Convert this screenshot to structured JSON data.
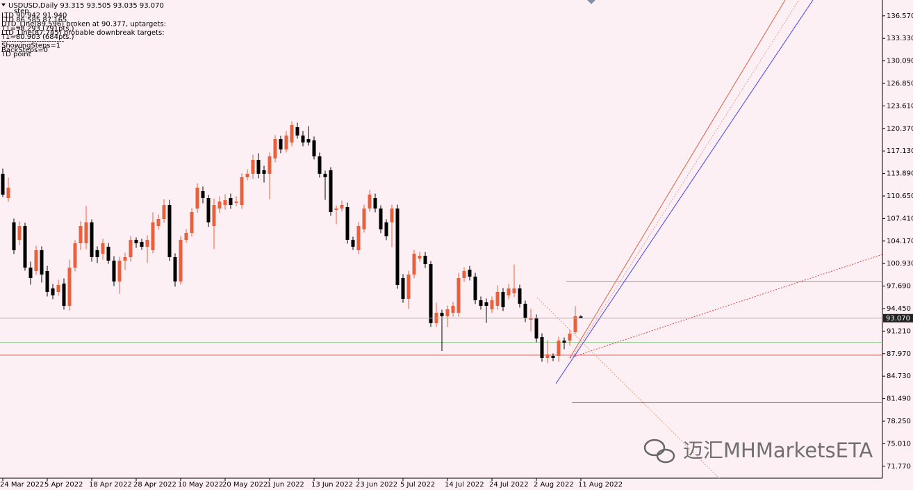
{
  "chart_data": {
    "type": "candlestick",
    "title": "USDUSD,Daily  93.315 93.505 93.035 93.070",
    "annotations": [
      "step",
      "LTD 90.942  91.940",
      "LTD 86.585  87.165",
      "DTD_Line(89.596) broken at 90.377, uptargets:",
      "T1=98.293 (791pts.)",
      "LTD_Line(87.745) probable downbreak targets:",
      "T1=80.903 (684pts.)",
      "-------------------------",
      "ShowingSteps=1",
      "BackSteps=0",
      "TD point"
    ],
    "watermark": "迈汇MHMarketsETA",
    "categories": [
      "24 Mar 2022",
      null,
      null,
      null,
      null,
      null,
      null,
      null,
      "5 Apr 2022",
      null,
      null,
      null,
      null,
      null,
      null,
      null,
      "18 Apr 2022",
      null,
      null,
      null,
      null,
      null,
      null,
      null,
      "28 Apr 2022",
      null,
      null,
      null,
      null,
      null,
      null,
      null,
      "10 May 2022",
      null,
      null,
      null,
      null,
      null,
      null,
      null,
      "20 May 2022",
      null,
      null,
      null,
      null,
      null,
      null,
      null,
      "1 Jun 2022",
      null,
      null,
      null,
      null,
      null,
      null,
      null,
      "13 Jun 2022",
      null,
      null,
      null,
      null,
      null,
      null,
      null,
      "23 Jun 2022",
      null,
      null,
      null,
      null,
      null,
      null,
      null,
      "5 Jul 2022",
      null,
      null,
      null,
      null,
      null,
      null,
      null,
      "14 Jul 2022",
      null,
      null,
      null,
      null,
      null,
      null,
      null,
      "24 Jul 2022",
      null,
      null,
      null,
      null,
      null,
      null,
      null,
      "2 Aug 2022",
      null,
      null,
      null,
      null,
      null,
      null,
      null,
      "11 Aug 2022"
    ],
    "open": [
      113.85,
      110.35,
      106.85,
      104.35,
      106.35,
      100.35,
      99.85,
      102.85,
      99.85,
      97.35,
      96.85,
      98.05,
      94.85,
      100.35,
      103.85,
      103.85,
      106.85,
      102.85,
      102.35,
      103.35,
      101.35,
      98.35,
      101.35,
      101.85,
      104.35,
      104.05,
      103.35,
      102.85,
      106.35,
      107.35,
      109.35,
      101.85,
      98.35,
      104.35,
      105.35,
      108.85,
      111.35,
      110.35,
      106.35,
      108.85,
      109.35,
      110.35,
      109.65,
      109.35,
      113.35,
      113.85,
      115.85,
      114.35,
      113.85,
      116.05,
      118.85,
      117.35,
      118.35,
      120.55,
      119.35,
      118.85,
      118.65,
      116.35,
      113.85,
      114.35,
      108.65,
      108.85,
      109.05,
      104.35,
      102.85,
      105.85,
      108.85,
      110.35,
      108.85,
      106.85,
      106.85,
      108.85,
      98.85,
      95.85,
      99.35,
      101.65,
      102.05,
      100.85,
      92.35,
      93.85,
      93.35,
      93.85,
      93.85,
      98.85,
      100.05,
      99.05,
      95.65,
      95.35,
      94.35,
      94.85,
      96.85,
      96.35,
      96.65,
      97.35,
      95.15,
      92.85,
      93.05,
      90.35,
      87.35,
      87.65,
      87.65,
      89.85,
      89.85,
      91.05,
      93.315
    ],
    "high": [
      114.6,
      113.3,
      107.4,
      107.0,
      106.8,
      101.2,
      103.5,
      103.4,
      100.6,
      98.0,
      98.6,
      98.8,
      101.5,
      104.3,
      107.0,
      109.2,
      107.3,
      103.4,
      104.5,
      103.9,
      102.0,
      101.9,
      102.5,
      104.9,
      104.7,
      104.5,
      105.0,
      108.3,
      108.0,
      110.2,
      110.1,
      102.4,
      104.9,
      105.9,
      108.9,
      112.5,
      112.0,
      110.8,
      110.3,
      110.6,
      110.9,
      111.0,
      110.6,
      113.9,
      114.5,
      116.6,
      116.8,
      115.0,
      116.9,
      119.4,
      119.3,
      120.0,
      121.4,
      121.2,
      120.0,
      120.7,
      119.2,
      116.9,
      114.3,
      114.8,
      109.3,
      110.0,
      109.7,
      104.8,
      106.9,
      109.4,
      111.5,
      111.0,
      109.3,
      107.3,
      109.4,
      109.4,
      99.4,
      99.9,
      102.9,
      102.6,
      102.6,
      101.3,
      95.3,
      94.3,
      94.9,
      95.4,
      99.6,
      100.4,
      100.6,
      99.6,
      96.2,
      95.9,
      96.2,
      97.8,
      97.4,
      98.0,
      100.8,
      97.9,
      95.6,
      94.4,
      93.6,
      90.9,
      89.9,
      88.0,
      90.4,
      90.3,
      91.4,
      94.8,
      93.505
    ],
    "low": [
      110.5,
      109.8,
      102.3,
      103.6,
      99.9,
      97.9,
      99.3,
      98.2,
      96.2,
      95.8,
      96.3,
      94.3,
      94.2,
      99.8,
      102.9,
      103.0,
      101.2,
      101.0,
      101.5,
      100.9,
      97.7,
      96.6,
      100.0,
      101.2,
      103.2,
      102.9,
      101.0,
      102.4,
      105.8,
      106.8,
      101.3,
      97.6,
      97.9,
      103.9,
      104.8,
      108.2,
      109.6,
      106.2,
      103.0,
      108.2,
      108.7,
      108.8,
      109.2,
      108.8,
      112.9,
      113.1,
      113.2,
      112.6,
      110.2,
      115.5,
      116.8,
      116.9,
      117.8,
      118.9,
      117.8,
      117.9,
      115.9,
      113.3,
      110.1,
      107.8,
      106.6,
      108.4,
      103.8,
      102.9,
      102.3,
      105.4,
      108.4,
      108.3,
      105.3,
      104.3,
      103.3,
      97.3,
      95.3,
      94.4,
      98.8,
      101.2,
      100.3,
      91.8,
      91.8,
      88.35,
      91.8,
      93.3,
      93.3,
      98.3,
      98.5,
      95.1,
      94.3,
      92.4,
      93.8,
      94.3,
      94.1,
      95.8,
      96.1,
      94.6,
      92.5,
      91.2,
      89.6,
      86.8,
      86.6,
      86.9,
      86.8,
      88.6,
      89.1,
      90.8,
      93.035
    ],
    "close": [
      110.85,
      111.85,
      102.85,
      106.35,
      100.35,
      98.85,
      102.85,
      99.35,
      96.85,
      96.35,
      97.85,
      94.85,
      100.35,
      103.85,
      106.35,
      106.85,
      101.85,
      101.85,
      103.85,
      101.35,
      98.35,
      101.35,
      101.85,
      104.35,
      103.85,
      103.35,
      104.35,
      106.85,
      107.35,
      109.35,
      101.85,
      98.35,
      104.35,
      105.35,
      108.35,
      111.85,
      110.35,
      106.85,
      109.35,
      109.85,
      110.05,
      109.35,
      109.85,
      113.35,
      113.85,
      115.85,
      113.85,
      113.85,
      116.35,
      118.85,
      117.35,
      119.35,
      120.85,
      119.35,
      118.35,
      118.35,
      116.35,
      113.85,
      113.35,
      108.35,
      108.85,
      109.35,
      104.35,
      103.35,
      106.35,
      108.85,
      110.85,
      108.85,
      105.85,
      104.85,
      108.85,
      97.85,
      95.85,
      99.35,
      102.35,
      102.05,
      100.85,
      92.35,
      93.85,
      93.35,
      94.35,
      94.85,
      98.85,
      99.85,
      99.05,
      95.65,
      94.85,
      94.85,
      95.65,
      96.85,
      94.65,
      97.35,
      97.35,
      95.15,
      93.05,
      93.05,
      90.15,
      87.35,
      87.85,
      87.35,
      89.85,
      89.55,
      90.85,
      93.35,
      93.07
    ],
    "up_color": "#e8603c",
    "down_color": "#000000",
    "last_price": {
      "value": 93.07,
      "label": "93.070"
    },
    "ylim": [
      70.05,
      138.85
    ],
    "yticks": [
      {
        "value": 136.57,
        "label": "136.570"
      },
      {
        "value": 133.33,
        "label": "133.330"
      },
      {
        "value": 130.09,
        "label": "130.090"
      },
      {
        "value": 126.85,
        "label": "126.850"
      },
      {
        "value": 123.61,
        "label": "123.610"
      },
      {
        "value": 120.37,
        "label": "120.370"
      },
      {
        "value": 117.13,
        "label": "117.130"
      },
      {
        "value": 113.89,
        "label": "113.890"
      },
      {
        "value": 110.65,
        "label": "110.650"
      },
      {
        "value": 107.41,
        "label": "107.410"
      },
      {
        "value": 104.17,
        "label": "104.170"
      },
      {
        "value": 100.93,
        "label": "100.930"
      },
      {
        "value": 97.69,
        "label": "97.690"
      },
      {
        "value": 94.45,
        "label": "94.450"
      },
      {
        "value": 91.21,
        "label": "91.210"
      },
      {
        "value": 87.97,
        "label": "87.970"
      },
      {
        "value": 84.73,
        "label": "84.730"
      },
      {
        "value": 81.49,
        "label": "81.490"
      },
      {
        "value": 78.25,
        "label": "78.250"
      },
      {
        "value": 75.01,
        "label": "75.010"
      },
      {
        "value": 71.77,
        "label": "71.770"
      }
    ]
  }
}
